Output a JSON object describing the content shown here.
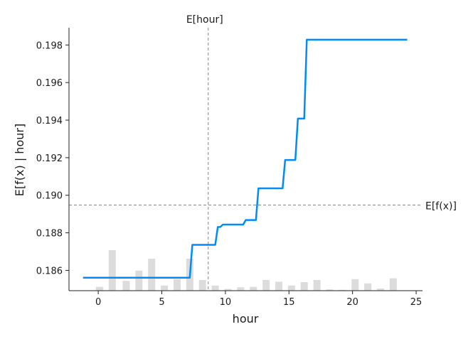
{
  "chart_data": {
    "type": "line",
    "title": "",
    "xlabel": "hour",
    "ylabel": "E[f(x) | hour]",
    "xlim": [
      -2.3,
      25.5
    ],
    "ylim": [
      0.18492,
      0.19892
    ],
    "x_ticks": [
      0,
      5,
      10,
      15,
      20,
      25
    ],
    "y_ticks": [
      0.186,
      0.188,
      0.19,
      0.192,
      0.194,
      0.196,
      0.198
    ],
    "x_tick_labels": [
      "0",
      "5",
      "10",
      "15",
      "20",
      "25"
    ],
    "y_tick_labels": [
      "0.186",
      "0.188",
      "0.190",
      "0.192",
      "0.194",
      "0.196",
      "0.198"
    ],
    "grid": false,
    "series": [
      {
        "color": "#008bfb",
        "points": [
          [
            -1.2,
            0.18561
          ],
          [
            7.2,
            0.18561
          ],
          [
            7.4,
            0.18736
          ],
          [
            9.2,
            0.18736
          ],
          [
            9.4,
            0.18831
          ],
          [
            9.6,
            0.18831
          ],
          [
            9.8,
            0.18844
          ],
          [
            11.4,
            0.18844
          ],
          [
            11.6,
            0.18868
          ],
          [
            12.4,
            0.18868
          ],
          [
            12.6,
            0.19037
          ],
          [
            14.5,
            0.19037
          ],
          [
            14.7,
            0.19188
          ],
          [
            15.5,
            0.19188
          ],
          [
            15.7,
            0.19408
          ],
          [
            16.2,
            0.19408
          ],
          [
            16.4,
            0.19828
          ],
          [
            24.3,
            0.19828
          ]
        ]
      }
    ],
    "reference_lines": {
      "expected_feature": {
        "label": "E[hour]",
        "x": 8.65
      },
      "expected_output": {
        "label": "E[f(x)]",
        "y": 0.18948
      }
    },
    "histogram": {
      "color": "#d0d0d0",
      "description_of_units": "relative bin height (fraction of max bin)",
      "bins": [
        {
          "x": 0.1,
          "height": 0.09
        },
        {
          "x": 1.1,
          "height": 0.95
        },
        {
          "x": 2.2,
          "height": 0.23
        },
        {
          "x": 3.2,
          "height": 0.47
        },
        {
          "x": 4.2,
          "height": 0.75
        },
        {
          "x": 5.2,
          "height": 0.12
        },
        {
          "x": 6.2,
          "height": 0.27
        },
        {
          "x": 7.2,
          "height": 0.75
        },
        {
          "x": 8.2,
          "height": 0.25
        },
        {
          "x": 9.2,
          "height": 0.12
        },
        {
          "x": 10.2,
          "height": 0.04
        },
        {
          "x": 11.2,
          "height": 0.08
        },
        {
          "x": 12.2,
          "height": 0.09
        },
        {
          "x": 13.2,
          "height": 0.25
        },
        {
          "x": 14.2,
          "height": 0.21
        },
        {
          "x": 15.2,
          "height": 0.12
        },
        {
          "x": 16.2,
          "height": 0.2
        },
        {
          "x": 17.2,
          "height": 0.25
        },
        {
          "x": 18.2,
          "height": 0.03
        },
        {
          "x": 19.2,
          "height": 0.02
        },
        {
          "x": 20.2,
          "height": 0.27
        },
        {
          "x": 21.2,
          "height": 0.17
        },
        {
          "x": 22.2,
          "height": 0.05
        },
        {
          "x": 23.2,
          "height": 0.29
        }
      ]
    }
  }
}
